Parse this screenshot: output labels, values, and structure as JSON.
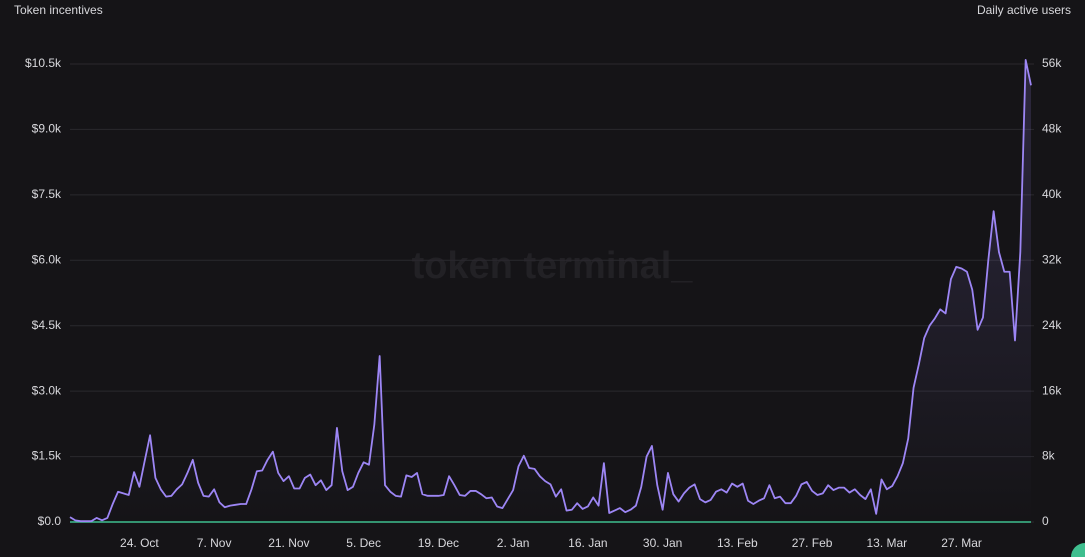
{
  "chart_data": {
    "type": "line",
    "ylabel": "Token incentives",
    "y2label": "Daily active users",
    "watermark": "token terminal_",
    "categories": [
      null,
      null,
      null,
      null,
      null,
      null,
      null,
      null,
      null,
      null,
      null,
      null,
      null,
      "24. Oct",
      null,
      null,
      null,
      null,
      null,
      null,
      null,
      null,
      null,
      null,
      null,
      null,
      null,
      "7. Nov",
      null,
      null,
      null,
      null,
      null,
      null,
      null,
      null,
      null,
      null,
      null,
      null,
      null,
      "21. Nov",
      null,
      null,
      null,
      null,
      null,
      null,
      null,
      null,
      null,
      null,
      null,
      null,
      null,
      "5. Dec",
      null,
      null,
      null,
      null,
      null,
      null,
      null,
      null,
      null,
      null,
      null,
      null,
      null,
      "19. Dec",
      null,
      null,
      null,
      null,
      null,
      null,
      null,
      null,
      null,
      null,
      null,
      null,
      null,
      "2. Jan",
      null,
      null,
      null,
      null,
      null,
      null,
      null,
      null,
      null,
      null,
      null,
      null,
      null,
      "16. Jan",
      null,
      null,
      null,
      null,
      null,
      null,
      null,
      null,
      null,
      null,
      null,
      null,
      null,
      "30. Jan",
      null,
      null,
      null,
      null,
      null,
      null,
      null,
      null,
      null,
      null,
      null,
      null,
      null,
      "13. Feb",
      null,
      null,
      null,
      null,
      null,
      null,
      null,
      null,
      null,
      null,
      null,
      null,
      null,
      "27. Feb",
      null,
      null,
      null,
      null,
      null,
      null,
      null,
      null,
      null,
      null,
      null,
      null,
      null,
      "13. Mar",
      null,
      null,
      null,
      null,
      null,
      null,
      null,
      null,
      null,
      null,
      null,
      null,
      null,
      "27. Mar",
      null,
      null,
      null,
      null,
      null,
      null,
      null,
      null,
      null,
      null,
      null,
      null,
      null
    ],
    "series": [
      {
        "color": "#3fbf8f",
        "values": [
          0,
          0,
          0,
          0,
          0,
          0,
          0,
          0,
          0,
          0,
          0,
          0,
          0,
          0,
          0,
          0,
          0,
          0,
          0,
          0,
          0,
          0,
          0,
          0,
          0,
          0,
          0,
          0,
          0,
          0,
          0,
          0,
          0,
          0,
          0,
          0,
          0,
          0,
          0,
          0,
          0,
          0,
          0,
          0,
          0,
          0,
          0,
          0,
          0,
          0,
          0,
          0,
          0,
          0,
          0,
          0,
          0,
          0,
          0,
          0,
          0,
          0,
          0,
          0,
          0,
          0,
          0,
          0,
          0,
          0,
          0,
          0,
          0,
          0,
          0,
          0,
          0,
          0,
          0,
          0,
          0,
          0,
          0,
          0,
          0,
          0,
          0,
          0,
          0,
          0,
          0,
          0,
          0,
          0,
          0,
          0,
          0,
          0,
          0,
          0,
          0,
          0,
          0,
          0,
          0,
          0,
          0,
          0,
          0,
          0,
          0,
          0,
          0,
          0,
          0,
          0,
          0,
          0,
          0,
          0,
          0,
          0,
          0,
          0,
          0,
          0,
          0,
          0,
          0,
          0,
          0,
          0,
          0,
          0,
          0,
          0,
          0,
          0,
          0,
          0,
          0,
          0,
          0,
          0,
          0,
          0,
          0,
          0,
          0,
          0,
          0,
          0,
          0,
          0,
          0,
          0,
          0,
          0,
          0,
          0,
          0,
          0,
          0,
          0,
          0,
          0,
          0,
          0,
          0,
          0,
          0,
          0,
          0,
          0,
          0,
          0,
          0,
          0,
          0,
          0,
          0
        ]
      },
      {
        "color": "#9d86f5",
        "axis": "y2",
        "values": [
          600,
          200,
          100,
          100,
          100,
          500,
          200,
          500,
          2200,
          3700,
          3500,
          3300,
          6100,
          4300,
          7500,
          10600,
          5400,
          4000,
          3100,
          3200,
          4000,
          4600,
          6000,
          7600,
          4800,
          3200,
          3100,
          4000,
          2400,
          1800,
          2000,
          2100,
          2200,
          2200,
          4000,
          6200,
          6300,
          7600,
          8600,
          6000,
          5000,
          5600,
          4100,
          4100,
          5400,
          5800,
          4500,
          5100,
          3900,
          4500,
          11500,
          6200,
          3900,
          4300,
          6000,
          7300,
          7000,
          11900,
          20300,
          4500,
          3700,
          3200,
          3100,
          5700,
          5500,
          6000,
          3400,
          3200,
          3200,
          3200,
          3300,
          5600,
          4500,
          3300,
          3200,
          3800,
          3800,
          3400,
          2900,
          3000,
          1900,
          1700,
          2800,
          3900,
          6800,
          8100,
          6600,
          6500,
          5600,
          5000,
          4600,
          3100,
          4000,
          1400,
          1500,
          2300,
          1600,
          1900,
          3000,
          2000,
          7200,
          1100,
          1400,
          1700,
          1200,
          1500,
          2000,
          4300,
          8000,
          9300,
          4500,
          1500,
          6000,
          3400,
          2500,
          3500,
          4200,
          4600,
          2800,
          2400,
          2700,
          3700,
          4000,
          3600,
          4700,
          4300,
          4700,
          2600,
          2200,
          2600,
          2900,
          4500,
          2900,
          3100,
          2300,
          2300,
          3200,
          4600,
          4900,
          3800,
          3300,
          3500,
          4500,
          3900,
          4200,
          4200,
          3600,
          4000,
          3300,
          2800,
          4000,
          1000,
          5200,
          4000,
          4400,
          5600,
          7200,
          10200,
          16400,
          19300,
          22500,
          24000,
          24900,
          26000,
          25500,
          29700,
          31200,
          31000,
          30600,
          28400,
          23500,
          25000,
          32000,
          38000,
          33000,
          30600,
          30600,
          22200,
          33000,
          56500,
          53400
        ]
      }
    ],
    "ylim": [
      0,
      10500
    ],
    "yticks": [
      {
        "value": 0,
        "label": "$0.0"
      },
      {
        "value": 1500,
        "label": "$1.5k"
      },
      {
        "value": 3000,
        "label": "$3.0k"
      },
      {
        "value": 4500,
        "label": "$4.5k"
      },
      {
        "value": 6000,
        "label": "$6.0k"
      },
      {
        "value": 7500,
        "label": "$7.5k"
      },
      {
        "value": 9000,
        "label": "$9.0k"
      },
      {
        "value": 10500,
        "label": "$10.5k"
      }
    ],
    "y2lim": [
      0,
      56000
    ],
    "y2ticks": [
      0,
      {
        "value": 8000,
        "label": "8k"
      },
      {
        "value": 16000,
        "label": "16k"
      },
      {
        "value": 24000,
        "label": "24k"
      },
      {
        "value": 32000,
        "label": "32k"
      },
      {
        "value": 40000,
        "label": "40k"
      },
      {
        "value": 48000,
        "label": "48k"
      },
      {
        "value": 56000,
        "label": "56k"
      }
    ],
    "grid": true
  }
}
